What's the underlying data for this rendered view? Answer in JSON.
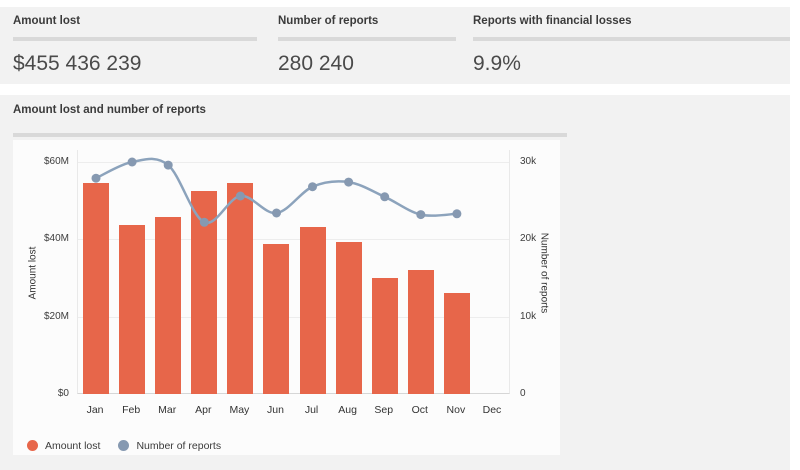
{
  "stats": {
    "cards": [
      {
        "label": "Amount lost",
        "value": "$455 436 239"
      },
      {
        "label": "Number of reports",
        "value": "280 240"
      },
      {
        "label": "Reports with financial losses",
        "value": "9.9%"
      }
    ]
  },
  "chart_section": {
    "title": "Amount lost and number of reports"
  },
  "chart_data": {
    "type": "bar+line",
    "title": "Amount lost and number of reports",
    "categories": [
      "Jan",
      "Feb",
      "Mar",
      "Apr",
      "May",
      "Jun",
      "Jul",
      "Aug",
      "Sep",
      "Oct",
      "Nov",
      "Dec"
    ],
    "series": [
      {
        "name": "Amount lost",
        "type": "bar",
        "axis": "left",
        "unit": "$M",
        "color": "#e7664a",
        "values": [
          54.5,
          43.7,
          45.9,
          52.6,
          54.6,
          38.7,
          43.1,
          39.4,
          30.1,
          32.1,
          26.0,
          null
        ]
      },
      {
        "name": "Number of reports",
        "type": "line",
        "axis": "right",
        "color": "#8ca3bc",
        "marker_color": "#8699b1",
        "values": [
          27900,
          30000,
          29600,
          22200,
          25600,
          23400,
          26800,
          27400,
          25500,
          23200,
          23300,
          null
        ]
      }
    ],
    "left_axis": {
      "title": "Amount lost",
      "min": 0,
      "max": 60,
      "ticks": [
        "$0",
        "$20M",
        "$40M",
        "$60M"
      ]
    },
    "right_axis": {
      "title": "Number of reports",
      "min": 0,
      "max": 30000,
      "ticks": [
        "0",
        "10k",
        "20k",
        "30k"
      ]
    },
    "grid": true,
    "legend_position": "bottom-left",
    "legend": [
      {
        "label": "Amount lost",
        "color": "#e7664a"
      },
      {
        "label": "Number of reports",
        "color": "#8699b1"
      }
    ]
  },
  "colors": {
    "panel_bg": "#f2f2f2",
    "divider": "#d9d9d9",
    "bar": "#e7664a",
    "line": "#8ca3bc"
  }
}
